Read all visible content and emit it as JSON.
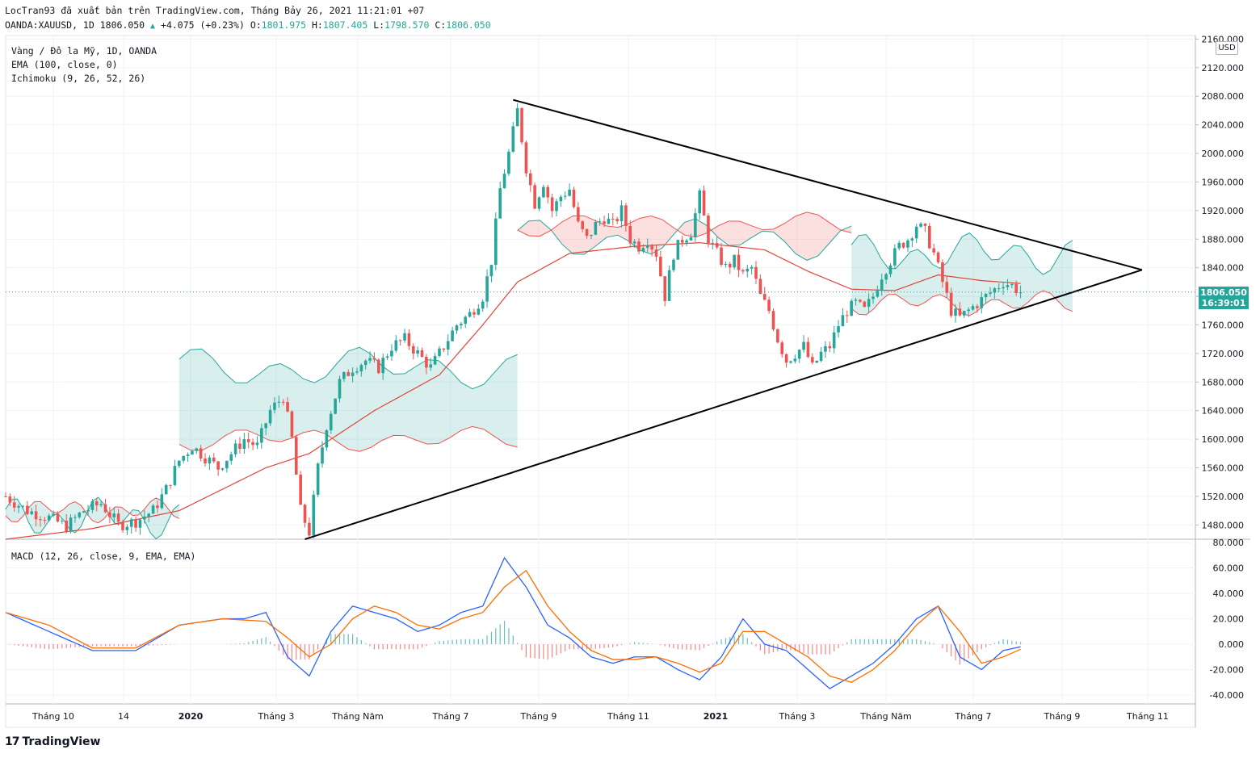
{
  "header": {
    "publish_line": "LocTran93 đã xuất bản trên TradingView.com, Tháng Bảy 26, 2021 11:21:01 +07",
    "symbol": "OANDA:XAUUSD, 1D",
    "last": "1806.050",
    "change": "+4.075 (+0.23%)",
    "o_label": "O:",
    "o_value": "1801.975",
    "h_label": "H:",
    "h_value": "1807.405",
    "l_label": "L:",
    "l_value": "1798.570",
    "c_label": "C:",
    "c_value": "1806.050"
  },
  "legend": {
    "instrument": "Vàng / Đô la Mỹ, 1D, OANDA",
    "ema": "EMA (100, close, 0)",
    "ichimoku": "Ichimoku (9, 26, 52, 26)",
    "macd": "MACD (12, 26, close, 9, EMA, EMA)"
  },
  "currency_label": "USD",
  "price_tag": {
    "price": "1806.050",
    "countdown": "16:39:01"
  },
  "logo": {
    "mark": "17",
    "text": "TradingView"
  },
  "colors": {
    "up": "#26a69a",
    "down": "#ef5350",
    "ema": "#e0443a",
    "macd": "#2962ff",
    "signal": "#ff6d00",
    "trendline": "#000000"
  },
  "chart_data": [
    {
      "type": "candlestick",
      "title": "Vàng / Đô la Mỹ, 1D, OANDA",
      "ylim": [
        1460,
        2165
      ],
      "y_ticks": [
        1480,
        1520,
        1560,
        1600,
        1640,
        1680,
        1720,
        1760,
        1800,
        1840,
        1880,
        1920,
        1960,
        2000,
        2040,
        2080,
        2120,
        2160
      ],
      "y_tick_labels": [
        "1480.000",
        "1520.000",
        "1560.000",
        "1600.000",
        "1640.000",
        "1680.000",
        "1720.000",
        "1760.000",
        "1800.000",
        "1840.000",
        "1880.000",
        "1920.000",
        "1960.000",
        "2000.000",
        "2040.000",
        "2080.000",
        "2120.000",
        "2160.000"
      ],
      "x_tick_labels": [
        {
          "label": "Tháng 10",
          "bold": false
        },
        {
          "label": "14",
          "bold": false
        },
        {
          "label": "2020",
          "bold": true
        },
        {
          "label": "Tháng 3",
          "bold": false
        },
        {
          "label": "Tháng Năm",
          "bold": false
        },
        {
          "label": "Tháng 7",
          "bold": false
        },
        {
          "label": "Tháng 9",
          "bold": false
        },
        {
          "label": "Tháng 11",
          "bold": false
        },
        {
          "label": "2021",
          "bold": true
        },
        {
          "label": "Tháng 3",
          "bold": false
        },
        {
          "label": "Tháng Năm",
          "bold": false
        },
        {
          "label": "Tháng 7",
          "bold": false
        },
        {
          "label": "Tháng 9",
          "bold": false
        },
        {
          "label": "Tháng 11",
          "bold": false
        }
      ],
      "close_path": [
        [
          0,
          1520
        ],
        [
          5,
          1500
        ],
        [
          10,
          1490
        ],
        [
          14,
          1478
        ],
        [
          18,
          1500
        ],
        [
          22,
          1510
        ],
        [
          26,
          1480
        ],
        [
          30,
          1485
        ],
        [
          34,
          1500
        ],
        [
          37,
          1530
        ],
        [
          40,
          1570
        ],
        [
          43,
          1590
        ],
        [
          46,
          1575
        ],
        [
          49,
          1560
        ],
        [
          52,
          1580
        ],
        [
          55,
          1600
        ],
        [
          58,
          1590
        ],
        [
          61,
          1640
        ],
        [
          64,
          1660
        ],
        [
          66,
          1600
        ],
        [
          68,
          1500
        ],
        [
          70,
          1470
        ],
        [
          72,
          1560
        ],
        [
          74,
          1620
        ],
        [
          77,
          1680
        ],
        [
          80,
          1700
        ],
        [
          83,
          1710
        ],
        [
          86,
          1700
        ],
        [
          89,
          1730
        ],
        [
          92,
          1740
        ],
        [
          95,
          1720
        ],
        [
          98,
          1700
        ],
        [
          101,
          1730
        ],
        [
          104,
          1760
        ],
        [
          107,
          1775
        ],
        [
          110,
          1800
        ],
        [
          112,
          1850
        ],
        [
          114,
          1950
        ],
        [
          116,
          2000
        ],
        [
          118,
          2060
        ],
        [
          120,
          1980
        ],
        [
          122,
          1930
        ],
        [
          124,
          1960
        ],
        [
          126,
          1920
        ],
        [
          128,
          1940
        ],
        [
          130,
          1950
        ],
        [
          132,
          1900
        ],
        [
          134,
          1880
        ],
        [
          136,
          1900
        ],
        [
          138,
          1910
        ],
        [
          140,
          1900
        ],
        [
          142,
          1920
        ],
        [
          144,
          1880
        ],
        [
          146,
          1870
        ],
        [
          148,
          1880
        ],
        [
          150,
          1860
        ],
        [
          152,
          1800
        ],
        [
          154,
          1860
        ],
        [
          156,
          1880
        ],
        [
          158,
          1890
        ],
        [
          160,
          1940
        ],
        [
          162,
          1880
        ],
        [
          164,
          1860
        ],
        [
          166,
          1840
        ],
        [
          168,
          1850
        ],
        [
          170,
          1830
        ],
        [
          172,
          1840
        ],
        [
          174,
          1800
        ],
        [
          176,
          1780
        ],
        [
          178,
          1740
        ],
        [
          180,
          1710
        ],
        [
          182,
          1720
        ],
        [
          184,
          1730
        ],
        [
          186,
          1700
        ],
        [
          188,
          1720
        ],
        [
          190,
          1730
        ],
        [
          192,
          1760
        ],
        [
          194,
          1780
        ],
        [
          196,
          1790
        ],
        [
          198,
          1780
        ],
        [
          200,
          1800
        ],
        [
          202,
          1830
        ],
        [
          204,
          1850
        ],
        [
          206,
          1870
        ],
        [
          208,
          1880
        ],
        [
          210,
          1900
        ],
        [
          212,
          1890
        ],
        [
          214,
          1860
        ],
        [
          216,
          1820
        ],
        [
          218,
          1780
        ],
        [
          220,
          1770
        ],
        [
          222,
          1780
        ],
        [
          224,
          1790
        ],
        [
          226,
          1800
        ],
        [
          228,
          1810
        ],
        [
          230,
          1820
        ],
        [
          232,
          1815
        ],
        [
          234,
          1806
        ]
      ],
      "ema_path": [
        [
          0,
          1460
        ],
        [
          20,
          1475
        ],
        [
          40,
          1500
        ],
        [
          60,
          1560
        ],
        [
          70,
          1580
        ],
        [
          85,
          1640
        ],
        [
          100,
          1690
        ],
        [
          110,
          1760
        ],
        [
          118,
          1820
        ],
        [
          130,
          1860
        ],
        [
          145,
          1870
        ],
        [
          160,
          1875
        ],
        [
          175,
          1865
        ],
        [
          185,
          1835
        ],
        [
          195,
          1810
        ],
        [
          205,
          1808
        ],
        [
          215,
          1830
        ],
        [
          225,
          1822
        ],
        [
          234,
          1818
        ]
      ],
      "ichimoku_cloud": [
        {
          "from_bar": 0,
          "to_bar": 40,
          "span_a": 1490,
          "span_b": 1500,
          "tone": "mixed"
        },
        {
          "from_bar": 40,
          "to_bar": 118,
          "span_a": 1700,
          "span_b": 1600,
          "tone": "bullish"
        },
        {
          "from_bar": 118,
          "to_bar": 195,
          "span_a": 1880,
          "span_b": 1900,
          "tone": "bearish"
        },
        {
          "from_bar": 195,
          "to_bar": 246,
          "span_a": 1860,
          "span_b": 1790,
          "tone": "mixed"
        }
      ],
      "trendlines": [
        {
          "name": "descending-resistance",
          "from": {
            "bar": 117,
            "price": 2075
          },
          "to": {
            "bar": 262,
            "price": 1837
          }
        },
        {
          "name": "ascending-support",
          "from": {
            "bar": 69,
            "price": 1460
          },
          "to": {
            "bar": 262,
            "price": 1837
          }
        }
      ]
    },
    {
      "type": "line",
      "title": "MACD (12, 26, close, 9, EMA, EMA)",
      "ylim": [
        -47,
        82
      ],
      "y_ticks": [
        -40,
        -20,
        0,
        20,
        40,
        60,
        80
      ],
      "y_tick_labels": [
        "-40.000",
        "-20.000",
        "0.000",
        "20.000",
        "40.000",
        "60.000",
        "80.000"
      ],
      "series": [
        {
          "name": "MACD",
          "values": [
            [
              0,
              25
            ],
            [
              10,
              10
            ],
            [
              20,
              -5
            ],
            [
              30,
              -5
            ],
            [
              40,
              15
            ],
            [
              50,
              20
            ],
            [
              55,
              20
            ],
            [
              60,
              25
            ],
            [
              65,
              -10
            ],
            [
              70,
              -25
            ],
            [
              75,
              10
            ],
            [
              80,
              30
            ],
            [
              85,
              25
            ],
            [
              90,
              20
            ],
            [
              95,
              10
            ],
            [
              100,
              15
            ],
            [
              105,
              25
            ],
            [
              110,
              30
            ],
            [
              115,
              68
            ],
            [
              120,
              45
            ],
            [
              125,
              15
            ],
            [
              130,
              5
            ],
            [
              135,
              -10
            ],
            [
              140,
              -15
            ],
            [
              145,
              -10
            ],
            [
              150,
              -10
            ],
            [
              155,
              -20
            ],
            [
              160,
              -28
            ],
            [
              165,
              -10
            ],
            [
              170,
              20
            ],
            [
              175,
              0
            ],
            [
              180,
              -5
            ],
            [
              185,
              -20
            ],
            [
              190,
              -35
            ],
            [
              195,
              -25
            ],
            [
              200,
              -15
            ],
            [
              205,
              0
            ],
            [
              210,
              20
            ],
            [
              215,
              30
            ],
            [
              220,
              -10
            ],
            [
              225,
              -20
            ],
            [
              230,
              -5
            ],
            [
              234,
              -2
            ]
          ]
        },
        {
          "name": "Signal",
          "values": [
            [
              0,
              25
            ],
            [
              10,
              15
            ],
            [
              20,
              -3
            ],
            [
              30,
              -3
            ],
            [
              40,
              15
            ],
            [
              50,
              20
            ],
            [
              60,
              18
            ],
            [
              65,
              5
            ],
            [
              70,
              -10
            ],
            [
              75,
              0
            ],
            [
              80,
              20
            ],
            [
              85,
              30
            ],
            [
              90,
              25
            ],
            [
              95,
              15
            ],
            [
              100,
              12
            ],
            [
              105,
              20
            ],
            [
              110,
              25
            ],
            [
              115,
              45
            ],
            [
              120,
              58
            ],
            [
              125,
              30
            ],
            [
              130,
              10
            ],
            [
              135,
              -5
            ],
            [
              140,
              -12
            ],
            [
              145,
              -12
            ],
            [
              150,
              -10
            ],
            [
              155,
              -15
            ],
            [
              160,
              -22
            ],
            [
              165,
              -15
            ],
            [
              170,
              10
            ],
            [
              175,
              10
            ],
            [
              180,
              0
            ],
            [
              185,
              -10
            ],
            [
              190,
              -25
            ],
            [
              195,
              -30
            ],
            [
              200,
              -20
            ],
            [
              205,
              -5
            ],
            [
              210,
              15
            ],
            [
              215,
              30
            ],
            [
              220,
              10
            ],
            [
              225,
              -15
            ],
            [
              230,
              -10
            ],
            [
              234,
              -4
            ]
          ]
        }
      ]
    }
  ]
}
